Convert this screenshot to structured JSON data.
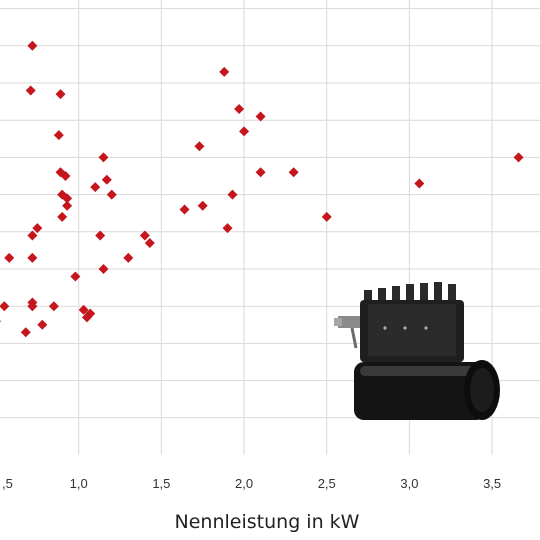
{
  "chart_data": {
    "type": "scatter",
    "title": "",
    "xlabel": "Nennleistung in kW",
    "ylabel": "",
    "xlim": [
      0.5,
      3.85
    ],
    "ylim": [
      0,
      12.5
    ],
    "xticks": [
      0.5,
      1.0,
      1.5,
      2.0,
      2.5,
      3.0,
      3.5
    ],
    "xtick_labels": [
      ",5",
      "1,0",
      "1,5",
      "2,0",
      "2,5",
      "3,0",
      "3,5"
    ],
    "grid": true,
    "legend": "none",
    "marker": "diamond",
    "marker_color": "#c4161c",
    "points": [
      [
        0.72,
        11.0
      ],
      [
        0.71,
        9.8
      ],
      [
        0.89,
        9.7
      ],
      [
        1.88,
        10.3
      ],
      [
        1.97,
        9.3
      ],
      [
        2.1,
        9.1
      ],
      [
        2.0,
        8.7
      ],
      [
        0.88,
        8.6
      ],
      [
        1.73,
        8.3
      ],
      [
        1.15,
        8.0
      ],
      [
        3.66,
        8.0
      ],
      [
        0.89,
        7.6
      ],
      [
        0.92,
        7.5
      ],
      [
        1.17,
        7.4
      ],
      [
        2.1,
        7.6
      ],
      [
        2.3,
        7.6
      ],
      [
        3.06,
        7.3
      ],
      [
        1.1,
        7.2
      ],
      [
        0.9,
        7.0
      ],
      [
        1.2,
        7.0
      ],
      [
        0.93,
        6.9
      ],
      [
        1.93,
        7.0
      ],
      [
        0.93,
        6.7
      ],
      [
        1.64,
        6.6
      ],
      [
        1.75,
        6.7
      ],
      [
        0.9,
        6.4
      ],
      [
        2.5,
        6.4
      ],
      [
        0.75,
        6.1
      ],
      [
        1.9,
        6.1
      ],
      [
        0.72,
        5.9
      ],
      [
        1.13,
        5.9
      ],
      [
        1.4,
        5.9
      ],
      [
        1.43,
        5.7
      ],
      [
        0.58,
        5.3
      ],
      [
        0.72,
        5.3
      ],
      [
        1.3,
        5.3
      ],
      [
        1.15,
        5.0
      ],
      [
        0.98,
        4.8
      ],
      [
        0.72,
        4.1
      ],
      [
        0.55,
        4.0
      ],
      [
        0.72,
        4.0
      ],
      [
        0.85,
        4.0
      ],
      [
        1.03,
        3.9
      ],
      [
        1.07,
        3.8
      ],
      [
        1.05,
        3.7
      ],
      [
        0.5,
        3.6
      ],
      [
        0.68,
        3.3
      ],
      [
        0.78,
        3.5
      ]
    ]
  }
}
